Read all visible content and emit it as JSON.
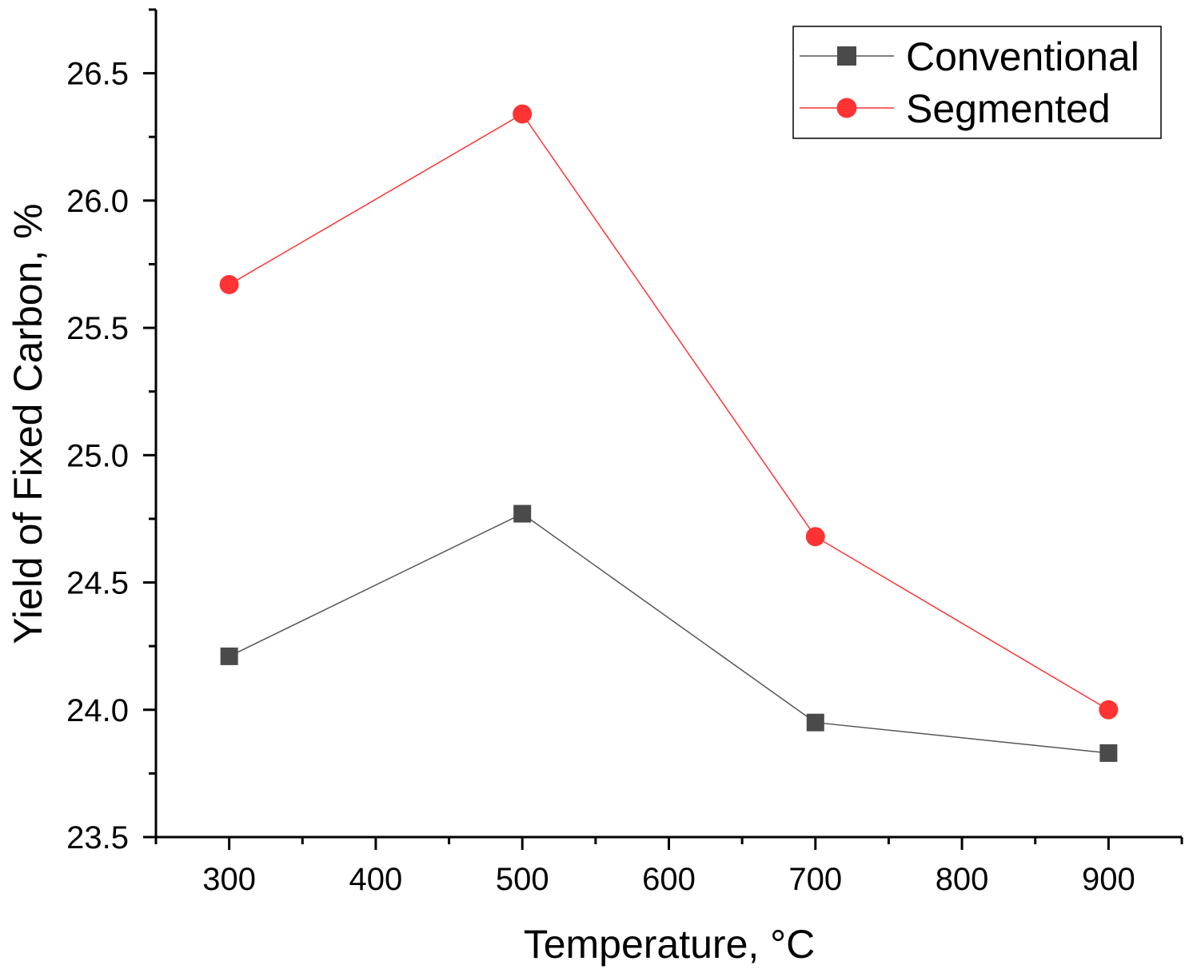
{
  "chart_data": {
    "type": "line",
    "title": "",
    "xlabel": "Temperature, °C",
    "ylabel": "Yield of Fixed Carbon, %",
    "x": [
      300,
      500,
      700,
      900
    ],
    "xlim": [
      250,
      950
    ],
    "ylim": [
      23.5,
      26.75
    ],
    "xticks": [
      300,
      400,
      500,
      600,
      700,
      800,
      900
    ],
    "xtick_labels": [
      "300",
      "400",
      "500",
      "600",
      "700",
      "800",
      "900"
    ],
    "yticks": [
      23.5,
      24.0,
      24.5,
      25.0,
      25.5,
      26.0,
      26.5
    ],
    "ytick_labels": [
      "23.5",
      "24.0",
      "24.5",
      "25.0",
      "25.5",
      "26.0",
      "26.5"
    ],
    "grid": false,
    "legend_position": "top-right",
    "series": [
      {
        "name": "Conventional",
        "marker": "square",
        "color": "#4a4a4a",
        "line_color": "#555555",
        "values": [
          24.21,
          24.77,
          23.95,
          23.83
        ]
      },
      {
        "name": "Segmented",
        "marker": "circle",
        "color": "#ff3333",
        "line_color": "#ff3333",
        "values": [
          25.67,
          26.34,
          24.68,
          24.0
        ]
      }
    ]
  }
}
